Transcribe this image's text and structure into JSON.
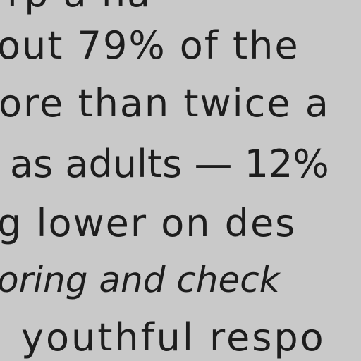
{
  "document": {
    "lines": [
      "rp    a         ha",
      "out 79% of the",
      "ore than twice a",
      "as adults — 12%",
      "g lower on des",
      "oring and check",
      "youthful respo"
    ]
  }
}
